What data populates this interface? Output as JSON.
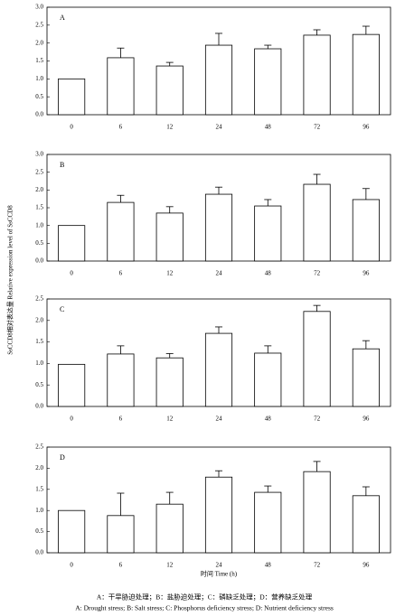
{
  "figure": {
    "ylabel": "SsCCD8相对表达量 Relative expression level of SsCCD8",
    "xlabel": "时间 Time (h)",
    "caption_zh": "A：干旱胁迫处理；B：盐胁迫处理；C：磷缺乏处理；D：营养缺乏处理",
    "caption_en": "A: Drought stress; B: Salt stress; C: Phosphorus deficiency stress; D: Nutrient deficiency stress"
  },
  "chart_data": [
    {
      "type": "bar",
      "title": "A",
      "categories": [
        "0",
        "6",
        "12",
        "24",
        "48",
        "72",
        "96"
      ],
      "values": [
        1.0,
        1.59,
        1.36,
        1.94,
        1.84,
        2.22,
        2.24
      ],
      "errors": [
        0,
        0.27,
        0.1,
        0.33,
        0.1,
        0.15,
        0.23
      ],
      "color": "#ffffff",
      "ylim": [
        0,
        3.0
      ],
      "yticks": [
        {
          "value": 0,
          "label": "0.0"
        },
        {
          "value": 0.5,
          "label": "0.5"
        },
        {
          "value": 1,
          "label": "1.0"
        },
        {
          "value": 1.5,
          "label": "1.5"
        },
        {
          "value": 2,
          "label": "2.0"
        },
        {
          "value": 2.5,
          "label": "2.5"
        },
        {
          "value": 3,
          "label": "3.0"
        }
      ]
    },
    {
      "type": "bar",
      "title": "B",
      "categories": [
        "0",
        "6",
        "12",
        "24",
        "48",
        "72",
        "96"
      ],
      "values": [
        1.0,
        1.65,
        1.35,
        1.88,
        1.55,
        2.16,
        1.73
      ],
      "errors": [
        0,
        0.2,
        0.18,
        0.2,
        0.18,
        0.28,
        0.31
      ],
      "color": "#ffffff",
      "ylim": [
        0,
        3.0
      ],
      "yticks": [
        {
          "value": 0,
          "label": "0.0"
        },
        {
          "value": 0.5,
          "label": "0.5"
        },
        {
          "value": 1,
          "label": "1.0"
        },
        {
          "value": 1.5,
          "label": "1.5"
        },
        {
          "value": 2,
          "label": "2.0"
        },
        {
          "value": 2.5,
          "label": "2.5"
        },
        {
          "value": 3,
          "label": "3.0"
        }
      ]
    },
    {
      "type": "bar",
      "title": "C",
      "categories": [
        "0",
        "6",
        "12",
        "24",
        "48",
        "72",
        "96"
      ],
      "values": [
        0.98,
        1.22,
        1.13,
        1.7,
        1.24,
        2.21,
        1.34
      ],
      "errors": [
        0,
        0.19,
        0.1,
        0.15,
        0.17,
        0.14,
        0.19
      ],
      "color": "#ffffff",
      "ylim": [
        0,
        2.5
      ],
      "yticks": [
        {
          "value": 0,
          "label": "0.0"
        },
        {
          "value": 0.5,
          "label": "0.5"
        },
        {
          "value": 1,
          "label": "1.0"
        },
        {
          "value": 1.5,
          "label": "1.5"
        },
        {
          "value": 2,
          "label": "2.0"
        },
        {
          "value": 2.5,
          "label": "2.5"
        }
      ]
    },
    {
      "type": "bar",
      "title": "D",
      "categories": [
        "0",
        "6",
        "12",
        "24",
        "48",
        "72",
        "96"
      ],
      "values": [
        1.0,
        0.88,
        1.15,
        1.79,
        1.43,
        1.92,
        1.35
      ],
      "errors": [
        0,
        0.53,
        0.28,
        0.15,
        0.15,
        0.24,
        0.21
      ],
      "color": "#ffffff",
      "ylim": [
        0,
        2.5
      ],
      "yticks": [
        {
          "value": 0,
          "label": "0.0"
        },
        {
          "value": 0.5,
          "label": "0.5"
        },
        {
          "value": 1,
          "label": "1.0"
        },
        {
          "value": 1.5,
          "label": "1.5"
        },
        {
          "value": 2,
          "label": "2.0"
        },
        {
          "value": 2.5,
          "label": "2.5"
        }
      ]
    }
  ]
}
